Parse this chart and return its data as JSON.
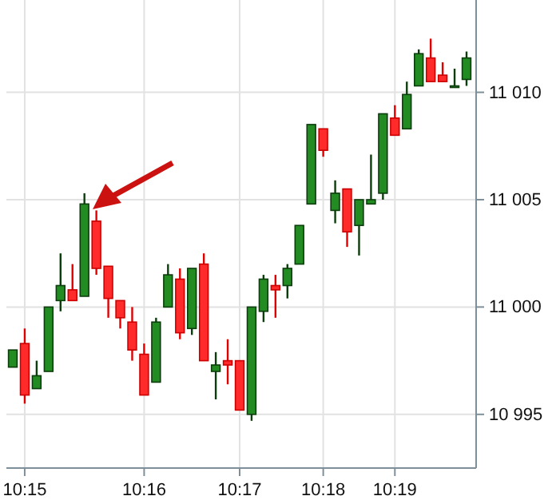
{
  "chart_data": {
    "type": "candlestick",
    "categories": [
      null,
      "10:15",
      null,
      null,
      null,
      null,
      null,
      null,
      null,
      null,
      null,
      "10:16",
      null,
      null,
      null,
      null,
      null,
      null,
      null,
      "10:17",
      null,
      null,
      null,
      null,
      null,
      null,
      "10:18",
      null,
      null,
      null,
      null,
      null,
      "10:19",
      null,
      null,
      null,
      null,
      null,
      null
    ],
    "ohlc": [
      [
        10997.2,
        10998.0,
        10997.2,
        10998.0
      ],
      [
        10998.3,
        10999.0,
        10995.5,
        10995.9
      ],
      [
        10996.2,
        10997.5,
        10996.2,
        10996.8
      ],
      [
        10997.0,
        11000.0,
        10997.0,
        11000.0
      ],
      [
        11000.3,
        11002.5,
        10999.8,
        11001.0
      ],
      [
        11000.8,
        11002.0,
        11000.3,
        11000.3
      ],
      [
        11000.5,
        11005.3,
        11000.5,
        11004.8
      ],
      [
        11004.0,
        11004.5,
        11001.5,
        11001.8
      ],
      [
        11001.9,
        11001.9,
        10999.5,
        11000.4
      ],
      [
        11000.3,
        11000.3,
        10999.0,
        10999.5
      ],
      [
        10999.3,
        11000.0,
        10997.5,
        10998.0
      ],
      [
        10997.8,
        10998.3,
        10995.9,
        10995.9
      ],
      [
        10996.5,
        10999.5,
        10996.5,
        10999.3
      ],
      [
        11000.0,
        11002.0,
        11000.0,
        11001.5
      ],
      [
        11001.3,
        11001.8,
        10998.5,
        10998.8
      ],
      [
        10999.0,
        11001.8,
        10998.7,
        11001.8
      ],
      [
        11002.0,
        11002.5,
        10997.5,
        10997.5
      ],
      [
        10997.0,
        10997.9,
        10995.7,
        10997.3
      ],
      [
        10997.5,
        10998.5,
        10996.4,
        10997.3
      ],
      [
        10997.5,
        10997.5,
        10995.2,
        10995.2
      ],
      [
        10995.0,
        11000.0,
        10994.7,
        11000.0
      ],
      [
        10999.8,
        11001.5,
        10999.3,
        11001.3
      ],
      [
        11001.0,
        11001.5,
        10999.5,
        11000.8
      ],
      [
        11001.0,
        11002.0,
        11000.4,
        11001.8
      ],
      [
        11002.0,
        11003.8,
        11002.0,
        11003.8
      ],
      [
        11004.8,
        11008.5,
        11004.8,
        11008.5
      ],
      [
        11008.3,
        11008.3,
        11007.0,
        11007.3
      ],
      [
        11004.5,
        11005.9,
        11003.9,
        11005.3
      ],
      [
        11005.5,
        11005.5,
        11002.8,
        11003.5
      ],
      [
        11003.8,
        11005.0,
        11002.4,
        11005.0
      ],
      [
        11004.8,
        11007.1,
        11004.8,
        11005.0
      ],
      [
        11005.3,
        11009.0,
        11005.0,
        11009.0
      ],
      [
        11008.8,
        11009.4,
        11008.0,
        11008.0
      ],
      [
        11008.3,
        11010.5,
        11008.3,
        11009.9
      ],
      [
        11010.3,
        11012.0,
        11010.3,
        11011.8
      ],
      [
        11011.6,
        11012.5,
        11010.5,
        11010.5
      ],
      [
        11010.8,
        11011.4,
        11010.5,
        11010.5
      ],
      [
        11010.3,
        11011.1,
        11010.3,
        11010.3
      ],
      [
        11010.6,
        11011.9,
        11010.3,
        11011.6
      ]
    ],
    "ylim": [
      10992.5,
      11014.3
    ],
    "yticks": [
      {
        "value": 10995,
        "label": "10 995"
      },
      {
        "value": 11000,
        "label": "11 000"
      },
      {
        "value": 11005,
        "label": "11 005"
      },
      {
        "value": 11010,
        "label": "11 010"
      }
    ],
    "grid": true
  }
}
